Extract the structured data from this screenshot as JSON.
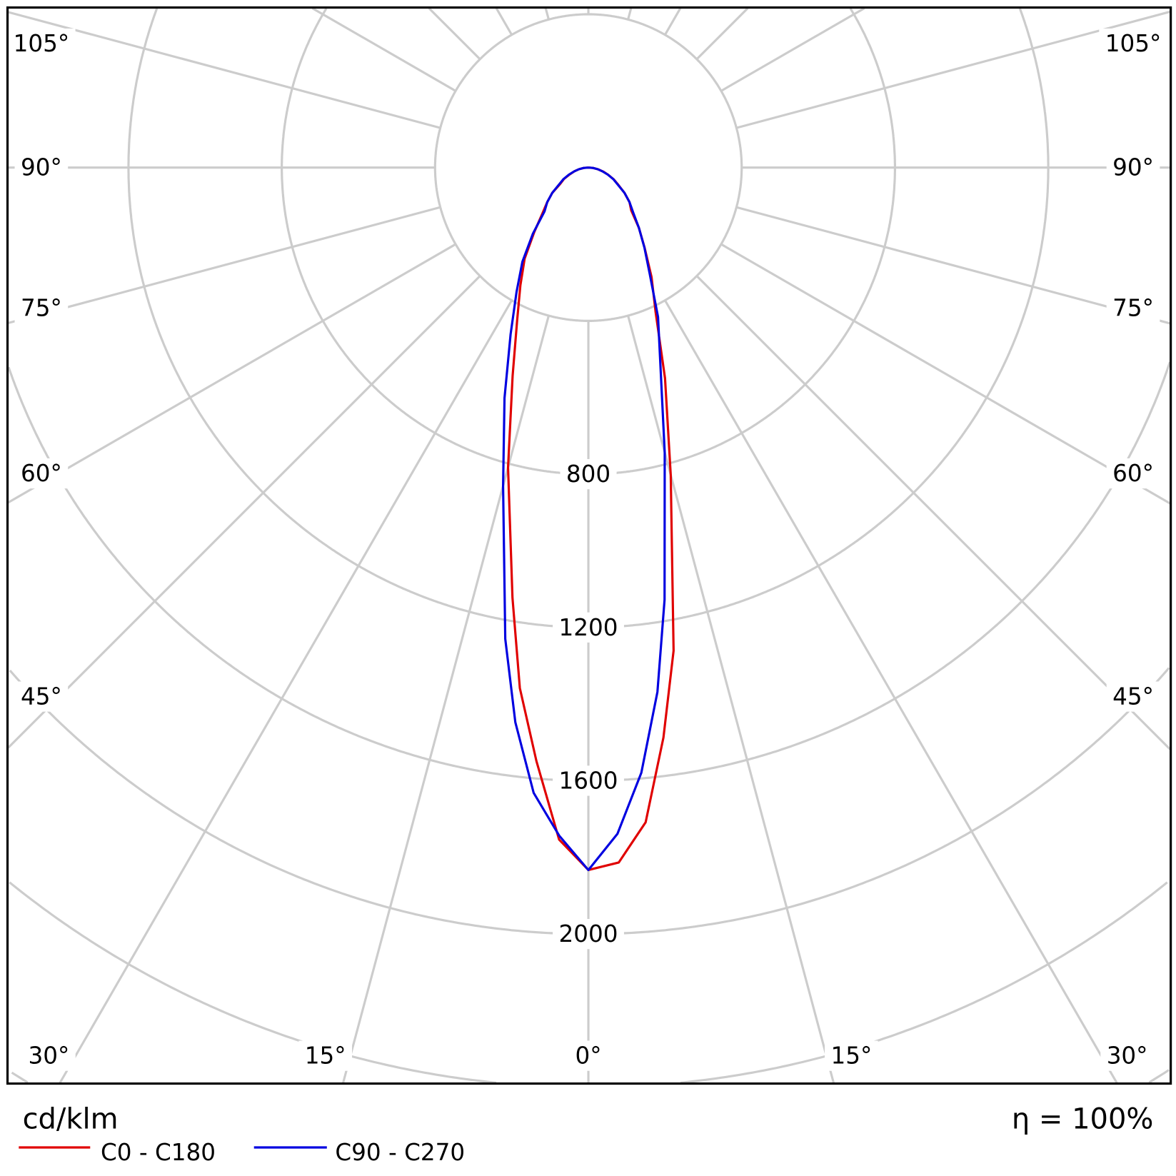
{
  "chart_data": {
    "type": "polar",
    "unit_label": "cd/klm",
    "efficiency_label": "η = 100%",
    "radial_axis": {
      "range": [
        0,
        2800
      ],
      "ring_step": 400,
      "tick_labels": [
        "800",
        "1200",
        "1600",
        "2000"
      ]
    },
    "angular_axis": {
      "zero_direction": "down",
      "spoke_step_deg": 15,
      "tick_labels_left": [
        "105°",
        "90°",
        "75°",
        "60°",
        "45°",
        "30°",
        "15°"
      ],
      "tick_labels_bottom": "0°",
      "tick_labels_right": [
        "15°",
        "30°",
        "45°",
        "60°",
        "75°",
        "90°",
        "105°"
      ]
    },
    "grid": true,
    "legend_placement": "bottom-left",
    "angles": [
      0,
      2.5,
      5,
      7.5,
      10,
      15,
      20,
      25,
      30,
      35,
      40,
      45,
      50,
      55,
      60,
      65,
      70,
      75,
      80,
      85,
      90
    ],
    "series": [
      {
        "name": "C0 - C180",
        "color": "#e00000",
        "right_plane": "C0",
        "right": [
          1833,
          1815,
          1715,
          1500,
          1280,
          830,
          585,
          415,
          330,
          256,
          205,
          158,
          140,
          115,
          90,
          73,
          55,
          40,
          25,
          12,
          0
        ],
        "left_plane": "C180",
        "left": [
          1833,
          1755,
          1555,
          1370,
          1140,
          810,
          578,
          440,
          355,
          290,
          220,
          170,
          140,
          115,
          85,
          70,
          52,
          38,
          25,
          12,
          0
        ]
      },
      {
        "name": "C90 - C270",
        "color": "#0000e0",
        "right_plane": "C90",
        "right": [
          1833,
          1740,
          1585,
          1380,
          1145,
          770,
          550,
          430,
          320,
          255,
          205,
          165,
          140,
          115,
          88,
          72,
          54,
          38,
          25,
          12,
          0
        ],
        "left_plane": "C270",
        "left": [
          1833,
          1745,
          1638,
          1460,
          1249,
          860,
          640,
          480,
          375,
          300,
          225,
          162,
          140,
          115,
          88,
          72,
          54,
          38,
          25,
          12,
          0
        ]
      }
    ]
  }
}
